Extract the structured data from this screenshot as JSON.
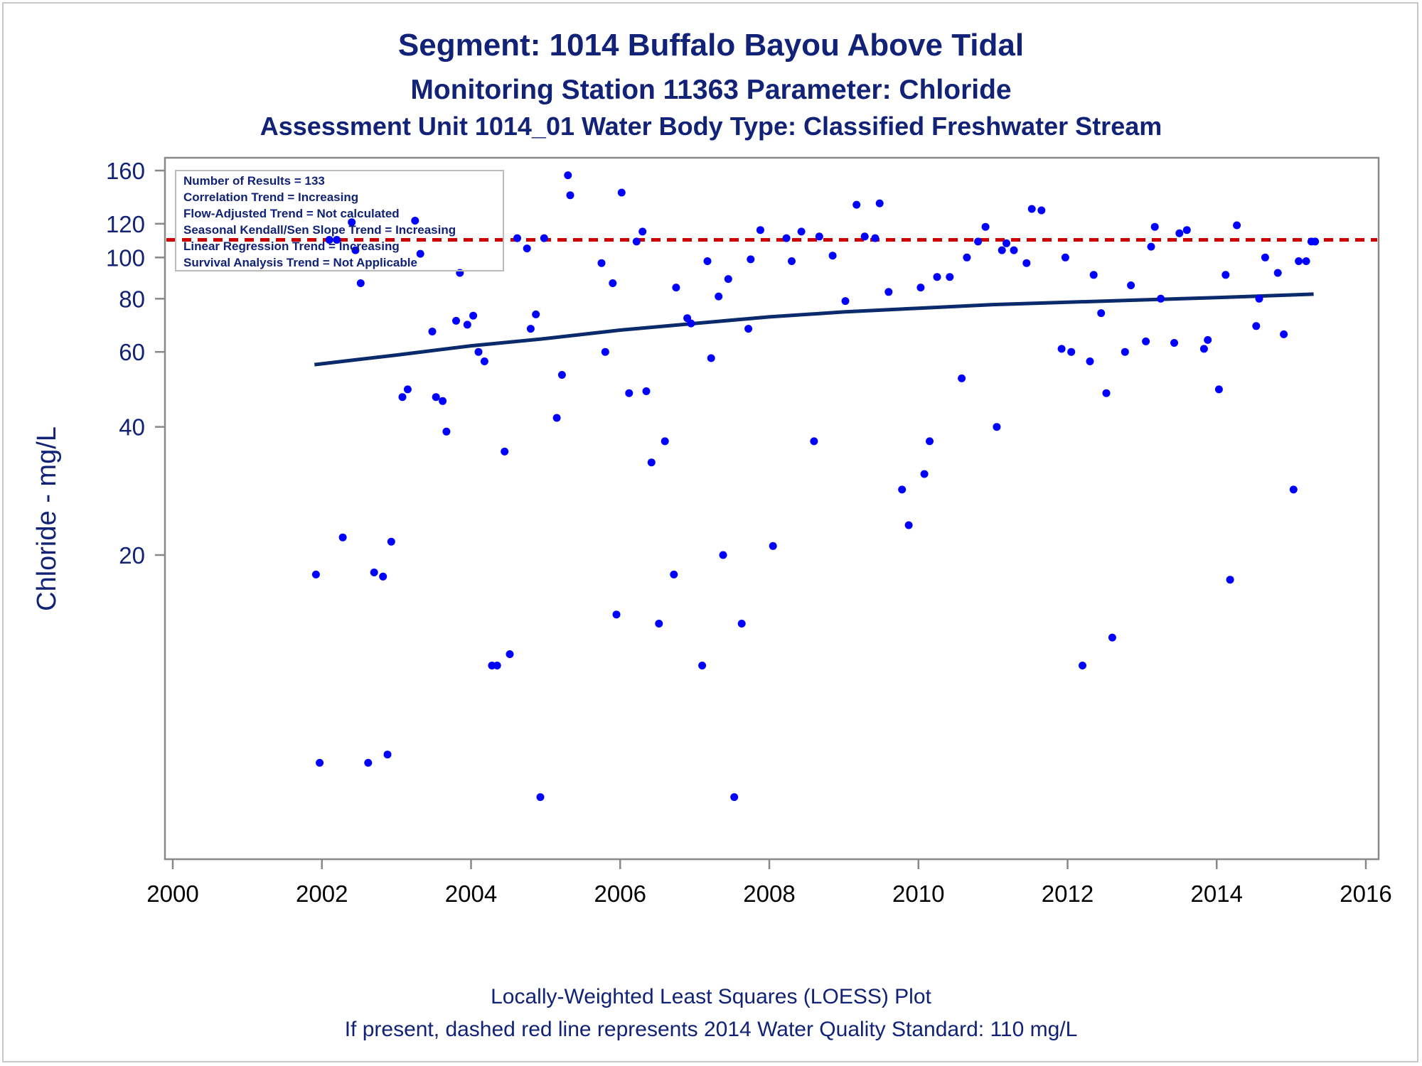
{
  "titles": {
    "line1": "Segment: 1014  Buffalo Bayou Above Tidal",
    "line2": "Monitoring Station 11363 Parameter: Chloride",
    "line3": "Assessment Unit 1014_01   Water Body Type: Classified Freshwater Stream"
  },
  "stats_box": {
    "lines": [
      "Number of Results = 133",
      "Correlation Trend = Increasing",
      "Flow-Adjusted Trend = Not calculated",
      "Seasonal Kendall/Sen Slope Trend = Increasing",
      "Linear Regression Trend = Increasing",
      "Survival Analysis Trend = Not Applicable"
    ]
  },
  "footer": {
    "line1": "Locally-Weighted Least Squares (LOESS) Plot",
    "line2": "If present, dashed red line represents 2014 Water Quality Standard: 110    mg/L"
  },
  "colors": {
    "text": "#112277",
    "points": "#0000ff",
    "loess": "#0b2a6b",
    "standard": "#cc0000",
    "axis": "#888888"
  },
  "chart_data": {
    "type": "scatter",
    "ylabel": "Chloride - mg/L",
    "xlabel": "",
    "yscale": "log",
    "xlim": [
      2000,
      2016
    ],
    "ylim": [
      4.3,
      170
    ],
    "x_ticks": [
      "2000",
      "2002",
      "2004",
      "2006",
      "2008",
      "2010",
      "2012",
      "2014",
      "2016"
    ],
    "y_ticks": [
      "160",
      "120",
      "100",
      "80",
      "60",
      "40",
      "20"
    ],
    "y_tick_values": [
      160,
      120,
      100,
      80,
      60,
      40,
      20
    ],
    "standard_line": {
      "value": 110,
      "style": "dashed",
      "color": "#cc0000"
    },
    "loess": {
      "x": [
        2001.9,
        2003.0,
        2004.0,
        2005.0,
        2006.0,
        2007.0,
        2008.0,
        2009.0,
        2010.0,
        2011.0,
        2012.0,
        2013.0,
        2014.0,
        2015.3
      ],
      "y": [
        56,
        59,
        62,
        64.5,
        67.5,
        70,
        72.5,
        74.5,
        76,
        77.5,
        78.5,
        79.5,
        80.5,
        82
      ]
    },
    "points": {
      "x": [
        2001.92,
        2001.97,
        2002.1,
        2002.2,
        2002.28,
        2002.4,
        2002.45,
        2002.52,
        2002.62,
        2002.7,
        2002.82,
        2002.88,
        2002.93,
        2003.08,
        2003.15,
        2003.25,
        2003.32,
        2003.48,
        2003.53,
        2003.62,
        2003.67,
        2003.8,
        2003.85,
        2003.95,
        2004.03,
        2004.1,
        2004.18,
        2004.28,
        2004.35,
        2004.45,
        2004.52,
        2004.62,
        2004.75,
        2004.8,
        2004.87,
        2004.93,
        2004.98,
        2005.15,
        2005.22,
        2005.3,
        2005.33,
        2005.75,
        2005.8,
        2005.9,
        2005.95,
        2006.02,
        2006.12,
        2006.22,
        2006.3,
        2006.35,
        2006.42,
        2006.52,
        2006.6,
        2006.72,
        2006.75,
        2006.9,
        2006.95,
        2007.1,
        2007.17,
        2007.22,
        2007.32,
        2007.38,
        2007.45,
        2007.53,
        2007.63,
        2007.72,
        2007.75,
        2007.88,
        2008.05,
        2008.23,
        2008.3,
        2008.43,
        2008.6,
        2008.67,
        2008.85,
        2009.02,
        2009.17,
        2009.28,
        2009.42,
        2009.48,
        2009.6,
        2009.78,
        2009.87,
        2010.03,
        2010.08,
        2010.15,
        2010.25,
        2010.42,
        2010.58,
        2010.65,
        2010.8,
        2010.9,
        2011.05,
        2011.12,
        2011.18,
        2011.28,
        2011.45,
        2011.52,
        2011.65,
        2011.92,
        2011.97,
        2012.05,
        2012.2,
        2012.3,
        2012.35,
        2012.45,
        2012.52,
        2012.6,
        2012.77,
        2012.85,
        2013.05,
        2013.12,
        2013.17,
        2013.25,
        2013.43,
        2013.5,
        2013.6,
        2013.83,
        2013.88,
        2014.03,
        2014.12,
        2014.18,
        2014.27,
        2014.53,
        2014.57,
        2014.65,
        2014.82,
        2014.9,
        2015.03,
        2015.1,
        2015.2,
        2015.27,
        2015.32
      ],
      "y": [
        18,
        6.5,
        110,
        110,
        22,
        121,
        104,
        87,
        6.5,
        18.2,
        17.8,
        6.8,
        21.5,
        47,
        49,
        122,
        102,
        67,
        47,
        46,
        39,
        71,
        92,
        69.5,
        73,
        60,
        57,
        11,
        11,
        35,
        11.7,
        111,
        105,
        68,
        73.5,
        5.4,
        111,
        42,
        53,
        156,
        140,
        97,
        60,
        87,
        14.5,
        142,
        48,
        109,
        115,
        48.5,
        33,
        13.8,
        37,
        18,
        85,
        72,
        70,
        11,
        98,
        58,
        81,
        20,
        89,
        5.4,
        13.8,
        68,
        99,
        116,
        21,
        111,
        98,
        115,
        37,
        112,
        101,
        79,
        133,
        112,
        111,
        134,
        83,
        28.5,
        23.5,
        85,
        31,
        37,
        90,
        90,
        52,
        100,
        109,
        118,
        40,
        104,
        108,
        104,
        97,
        130,
        129,
        61,
        100,
        60,
        11,
        57,
        91,
        74,
        48,
        12.8,
        60,
        86,
        63.5,
        106,
        118,
        80,
        63,
        114,
        116,
        61,
        64,
        49,
        91,
        17.5,
        119,
        69,
        80,
        100,
        92,
        66,
        28.5,
        98,
        98,
        109,
        109
      ]
    }
  }
}
